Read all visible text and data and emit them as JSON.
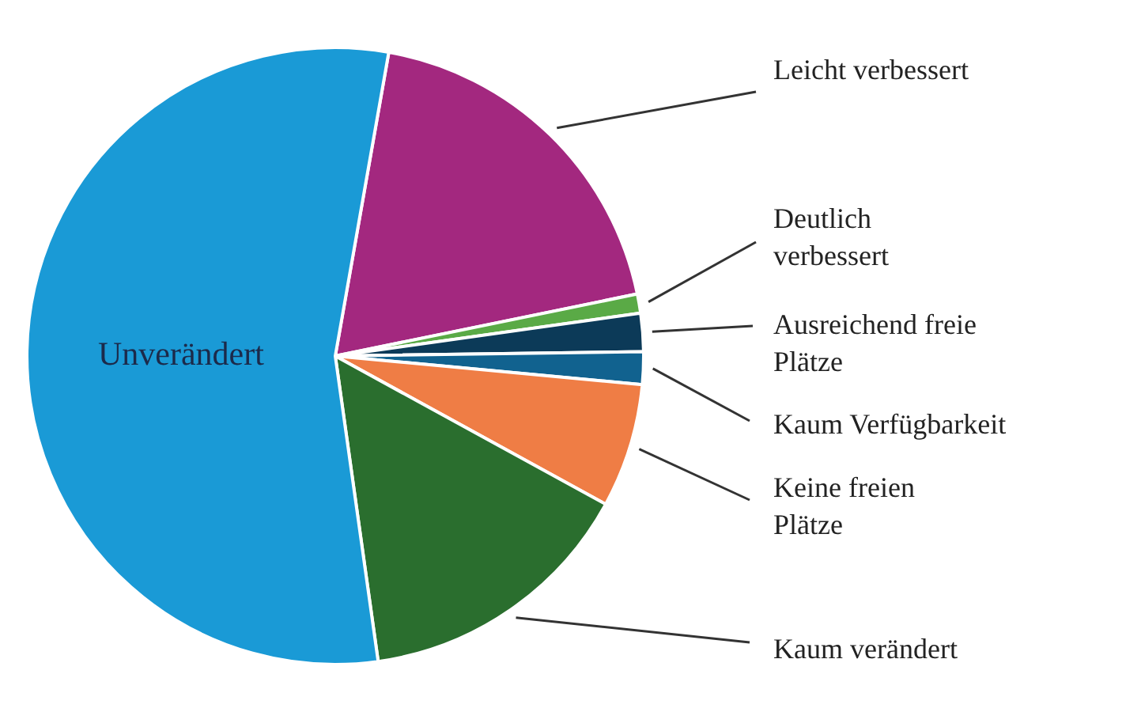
{
  "chart_data": {
    "type": "pie",
    "categories": [
      "Leicht verbessert",
      "Deutlich verbessert",
      "Ausreichend freie Plätze",
      "Kaum Verfügbarkeit",
      "Keine freien Plätze",
      "Kaum verändert",
      "Unverändert"
    ],
    "values": [
      19,
      1,
      2,
      1.7,
      6.5,
      14.8,
      55
    ],
    "colors": [
      "#a3287f",
      "#5aaa46",
      "#0c3a58",
      "#11628f",
      "#ef7d45",
      "#2a6e2e",
      "#1a9ad6"
    ]
  }
}
